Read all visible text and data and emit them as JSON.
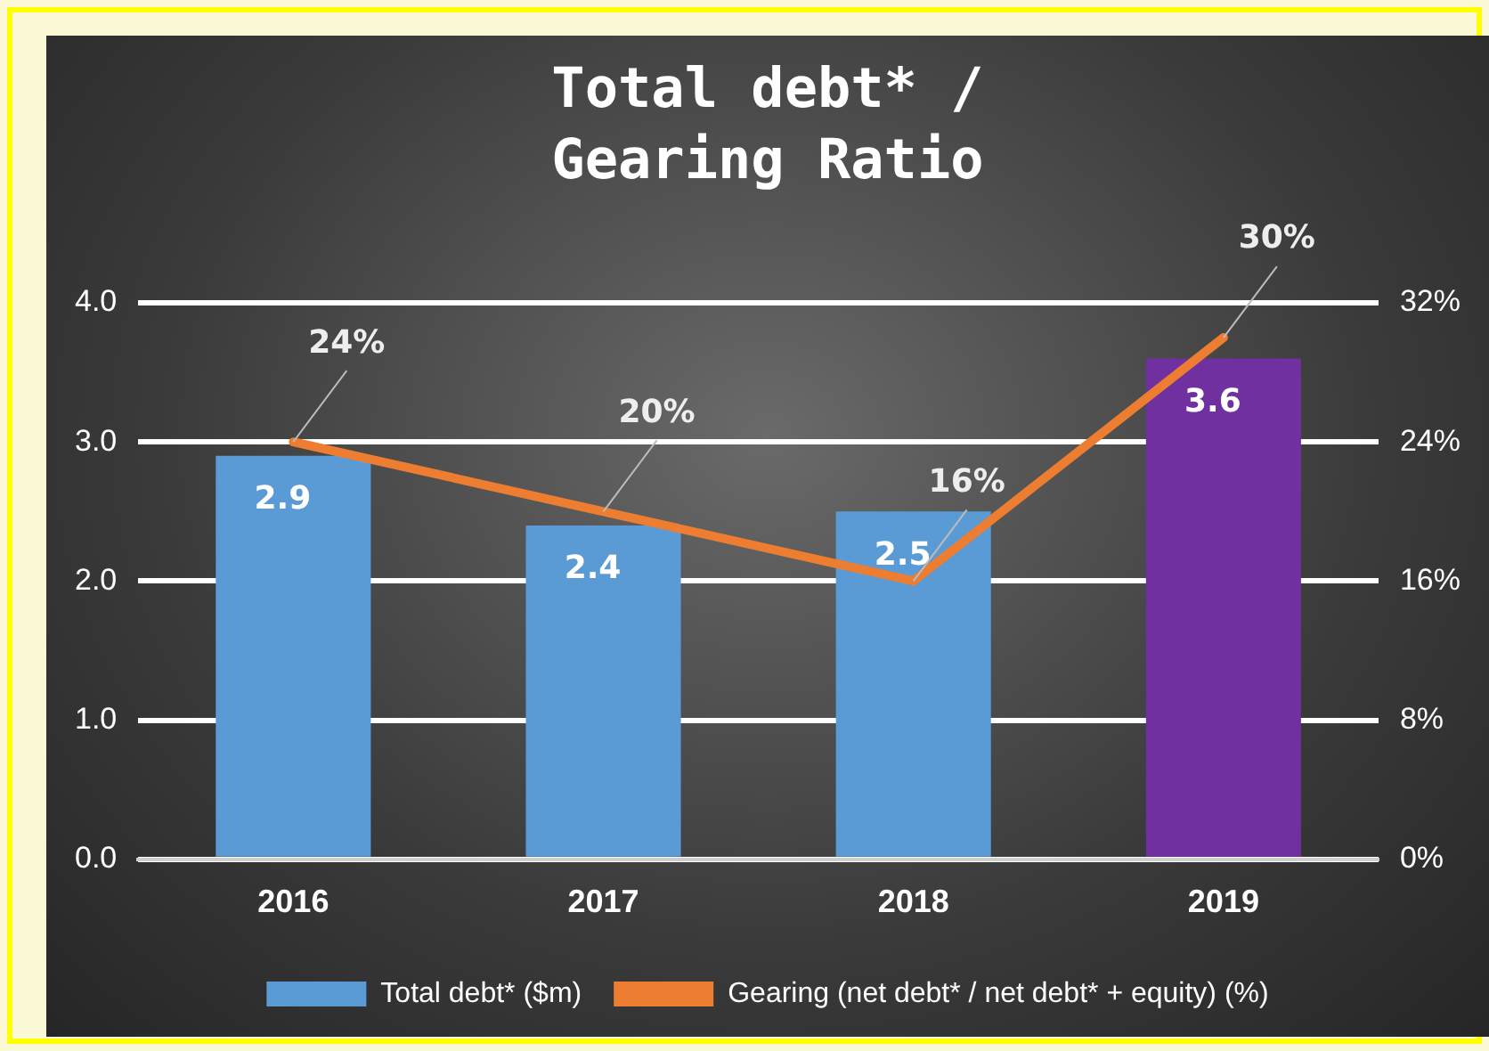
{
  "chart_data": {
    "type": "bar",
    "title": "Total debt* / Gearing Ratio",
    "categories": [
      "2016",
      "2017",
      "2018",
      "2019"
    ],
    "series": [
      {
        "name": "Total debt* ($m)",
        "color": "#5b9bd5",
        "colors": [
          "#5b9bd5",
          "#5b9bd5",
          "#5b9bd5",
          "#7030a0"
        ],
        "values": [
          2.9,
          2.4,
          2.5,
          3.6
        ],
        "value_labels": [
          "2.9",
          "2.4",
          "2.5",
          "3.6"
        ]
      },
      {
        "name": "Gearing (net debt* / net debt* + equity) (%)",
        "type": "line",
        "axis": "y2",
        "color": "#ed7d31",
        "values": [
          24,
          20,
          16,
          30
        ],
        "value_labels": [
          "24%",
          "20%",
          "16%",
          "30%"
        ]
      }
    ],
    "ylim": [
      0,
      4
    ],
    "yticks": [
      {
        "value": 0,
        "label": "0.0"
      },
      {
        "value": 1,
        "label": "1.0"
      },
      {
        "value": 2,
        "label": "2.0"
      },
      {
        "value": 3,
        "label": "3.0"
      },
      {
        "value": 4,
        "label": "4.0"
      }
    ],
    "y2lim": [
      0,
      32
    ],
    "y2ticks": [
      {
        "value": 0,
        "label": "0%"
      },
      {
        "value": 8,
        "label": "8%"
      },
      {
        "value": 16,
        "label": "16%"
      },
      {
        "value": 24,
        "label": "24%"
      },
      {
        "value": 32,
        "label": "32%"
      }
    ],
    "grid": "y",
    "legend": "bottom",
    "marker": "none",
    "line_style": "solid"
  }
}
